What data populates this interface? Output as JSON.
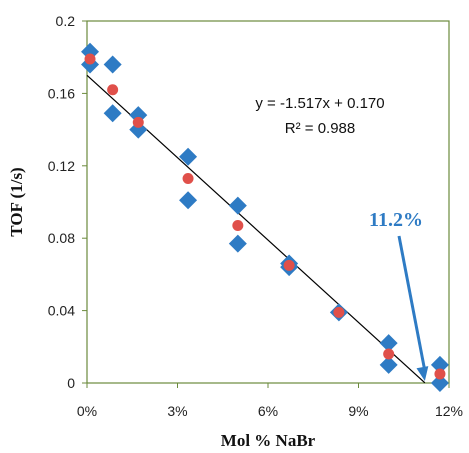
{
  "chart_data": {
    "type": "scatter",
    "xlabel": "Mol % NaBr",
    "ylabel": "TOF (1/s)",
    "xlim": [
      0,
      12
    ],
    "ylim": [
      0,
      0.2
    ],
    "x_ticks": [
      0,
      3,
      6,
      9,
      12
    ],
    "x_tick_labels": [
      "0%",
      "3%",
      "6%",
      "9%",
      "12%"
    ],
    "y_ticks": [
      0,
      0.04,
      0.08,
      0.12,
      0.16,
      0.2
    ],
    "y_tick_labels": [
      "0",
      "0.04",
      "0.08",
      "0.12",
      "0.16",
      "0.2"
    ],
    "grid": false,
    "series": [
      {
        "marker": "diamond",
        "color": "#2E7BC4",
        "points": [
          [
            0.1,
            0.183
          ],
          [
            0.1,
            0.176
          ],
          [
            0.85,
            0.176
          ],
          [
            0.85,
            0.149
          ],
          [
            1.7,
            0.148
          ],
          [
            1.7,
            0.14
          ],
          [
            3.35,
            0.125
          ],
          [
            3.35,
            0.101
          ],
          [
            5.0,
            0.098
          ],
          [
            5.0,
            0.077
          ],
          [
            6.7,
            0.066
          ],
          [
            6.7,
            0.064
          ],
          [
            8.35,
            0.039
          ],
          [
            10.0,
            0.022
          ],
          [
            10.0,
            0.01
          ],
          [
            11.7,
            0.01
          ],
          [
            11.7,
            0.0
          ]
        ]
      },
      {
        "marker": "circle",
        "color": "#E0504A",
        "points": [
          [
            0.1,
            0.179
          ],
          [
            0.85,
            0.162
          ],
          [
            1.7,
            0.144
          ],
          [
            3.35,
            0.113
          ],
          [
            5.0,
            0.087
          ],
          [
            6.7,
            0.065
          ],
          [
            8.35,
            0.039
          ],
          [
            10.0,
            0.016
          ],
          [
            11.7,
            0.005
          ]
        ]
      }
    ],
    "trendline": {
      "slope": -1.517,
      "intercept": 0.17,
      "x_range": [
        0,
        11.2
      ],
      "color": "#000000",
      "equation_label": "y = -1.517x + 0.170",
      "r2_label": "R² = 0.988"
    },
    "annotation": {
      "text": "11.2%",
      "color": "#2E7BC4",
      "points_to": [
        11.2,
        0
      ]
    }
  }
}
